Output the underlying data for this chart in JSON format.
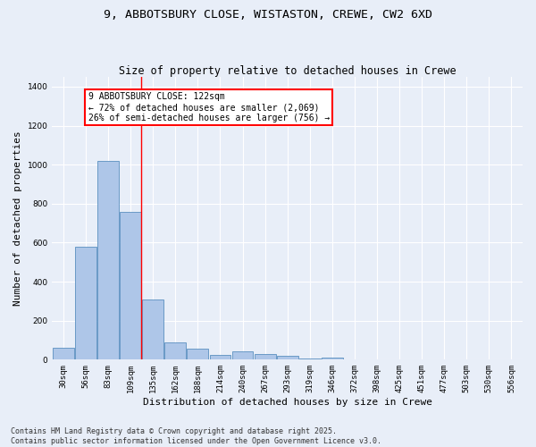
{
  "title_line1": "9, ABBOTSBURY CLOSE, WISTASTON, CREWE, CW2 6XD",
  "title_line2": "Size of property relative to detached houses in Crewe",
  "xlabel": "Distribution of detached houses by size in Crewe",
  "ylabel": "Number of detached properties",
  "categories": [
    "30sqm",
    "56sqm",
    "83sqm",
    "109sqm",
    "135sqm",
    "162sqm",
    "188sqm",
    "214sqm",
    "240sqm",
    "267sqm",
    "293sqm",
    "319sqm",
    "346sqm",
    "372sqm",
    "398sqm",
    "425sqm",
    "451sqm",
    "477sqm",
    "503sqm",
    "530sqm",
    "556sqm"
  ],
  "values": [
    60,
    580,
    1020,
    760,
    310,
    90,
    55,
    25,
    45,
    30,
    20,
    5,
    10,
    0,
    0,
    0,
    0,
    0,
    0,
    0,
    0
  ],
  "bar_color": "#aec6e8",
  "bar_edge_color": "#5a90c0",
  "highlight_index": 3,
  "annotation_text": "9 ABBOTSBURY CLOSE: 122sqm\n← 72% of detached houses are smaller (2,069)\n26% of semi-detached houses are larger (756) →",
  "annotation_box_color": "white",
  "annotation_box_edge": "red",
  "ylim": [
    0,
    1450
  ],
  "yticks": [
    0,
    200,
    400,
    600,
    800,
    1000,
    1200,
    1400
  ],
  "background_color": "#e8eef8",
  "plot_background": "#e8eef8",
  "grid_color": "white",
  "footer_text": "Contains HM Land Registry data © Crown copyright and database right 2025.\nContains public sector information licensed under the Open Government Licence v3.0.",
  "title_fontsize": 9.5,
  "subtitle_fontsize": 8.5,
  "tick_fontsize": 6.5,
  "axis_label_fontsize": 8,
  "footer_fontsize": 6,
  "annotation_fontsize": 7
}
